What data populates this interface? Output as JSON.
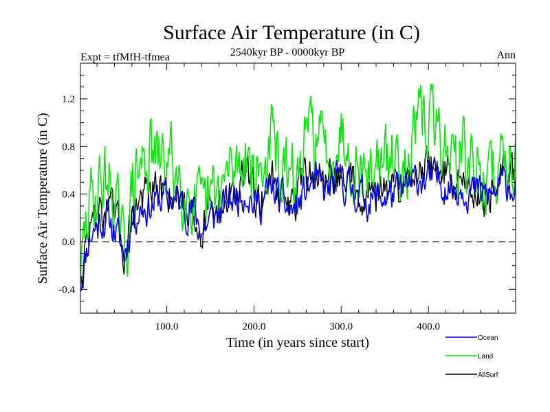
{
  "chart_data": {
    "type": "line",
    "title": "Surface Air Temperature (in C)",
    "subtitle": "2540kyr BP - 0000kyr BP",
    "expt_label": "Expt = tfMfH-tfmea",
    "season_label": "Ann",
    "xlabel": "Time (in years since start)",
    "ylabel": "Surface Air Temperature (in C)",
    "xlim": [
      1,
      500
    ],
    "ylim": [
      -0.6,
      1.5
    ],
    "x_ticks": [
      100,
      200,
      300,
      400
    ],
    "x_tick_labels": [
      "100.0",
      "200.0",
      "300.0",
      "400.0"
    ],
    "y_ticks": [
      -0.4,
      0.0,
      0.4,
      0.8,
      1.2
    ],
    "y_tick_labels": [
      "-0.4",
      "0.0",
      "0.4",
      "0.8",
      "1.2"
    ],
    "reference_line": 0.0,
    "legend_position": "bottom-right",
    "x_step": 10,
    "series": [
      {
        "name": "Ocean",
        "color": "#0000ff",
        "values": [
          -0.35,
          0.05,
          0.15,
          0.2,
          0.1,
          -0.1,
          0.2,
          0.3,
          0.3,
          0.35,
          0.38,
          0.35,
          0.3,
          0.25,
          0.1,
          0.2,
          0.25,
          0.35,
          0.38,
          0.45,
          0.3,
          0.35,
          0.45,
          0.35,
          0.25,
          0.3,
          0.45,
          0.5,
          0.4,
          0.48,
          0.5,
          0.45,
          0.4,
          0.35,
          0.38,
          0.38,
          0.4,
          0.42,
          0.48,
          0.55,
          0.5,
          0.52,
          0.5,
          0.45,
          0.48,
          0.42,
          0.4,
          0.38,
          0.45,
          0.5,
          0.45
        ]
      },
      {
        "name": "Land",
        "color": "#00ee00",
        "values": [
          -0.3,
          0.3,
          0.45,
          0.55,
          0.35,
          -0.15,
          0.45,
          0.65,
          0.75,
          0.65,
          0.7,
          0.6,
          0.5,
          0.35,
          0.15,
          0.35,
          0.4,
          0.55,
          0.65,
          0.8,
          0.55,
          0.6,
          0.85,
          0.6,
          0.45,
          0.55,
          0.85,
          0.95,
          0.7,
          0.85,
          0.95,
          0.75,
          0.65,
          0.55,
          0.7,
          0.6,
          0.7,
          0.75,
          0.8,
          0.95,
          1.05,
          0.9,
          0.8,
          0.7,
          0.72,
          0.6,
          0.55,
          0.5,
          0.65,
          0.75,
          0.8
        ]
      },
      {
        "name": "AllSurf",
        "color": "#000000",
        "values": [
          -0.3,
          0.1,
          0.22,
          0.28,
          0.18,
          -0.1,
          0.25,
          0.38,
          0.4,
          0.4,
          0.45,
          0.4,
          0.35,
          0.28,
          0.12,
          0.25,
          0.3,
          0.4,
          0.45,
          0.55,
          0.38,
          0.42,
          0.55,
          0.42,
          0.3,
          0.38,
          0.55,
          0.6,
          0.48,
          0.55,
          0.6,
          0.52,
          0.45,
          0.4,
          0.45,
          0.42,
          0.48,
          0.5,
          0.55,
          0.65,
          0.62,
          0.6,
          0.58,
          0.5,
          0.52,
          0.45,
          0.42,
          0.4,
          0.48,
          0.55,
          0.52
        ]
      }
    ]
  }
}
